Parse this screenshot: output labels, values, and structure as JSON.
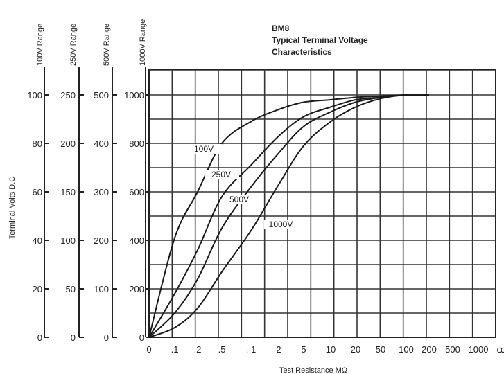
{
  "chart_data": {
    "type": "line",
    "title_lines": [
      "BM8",
      "Typical Terminal Voltage",
      "Characteristics"
    ],
    "xlabel": "Test Resistance MΩ",
    "ylabel": "Terminal Volts D.C",
    "x_ticks": [
      "0",
      ".1",
      ".2",
      ".5",
      ". 1",
      "2",
      "5",
      "10",
      "20",
      "50",
      "100",
      "200",
      "500",
      "1000",
      "∞"
    ],
    "y_axes": [
      {
        "range_label": "100V Range",
        "ticks": [
          "0",
          "20",
          "40",
          "60",
          "80",
          "100"
        ]
      },
      {
        "range_label": "250V Range",
        "ticks": [
          "0",
          "50",
          "100",
          "150",
          "200",
          "250"
        ]
      },
      {
        "range_label": "500V Range",
        "ticks": [
          "0",
          "100",
          "200",
          "300",
          "400",
          "500"
        ]
      },
      {
        "range_label": "1000V Range",
        "ticks": [
          "0",
          "200",
          "400",
          "600",
          "800",
          "1000"
        ]
      }
    ],
    "ylim_percent": [
      0,
      100
    ],
    "grid": true,
    "series": [
      {
        "name": "100V",
        "points": [
          [
            "0",
            0
          ],
          [
            ".1",
            41
          ],
          [
            ".2",
            60
          ],
          [
            ".5",
            80
          ],
          [
            ". 1",
            89
          ],
          [
            "2",
            94
          ],
          [
            "5",
            97
          ],
          [
            "10",
            98
          ],
          [
            "20",
            99
          ],
          [
            "50",
            99.5
          ],
          [
            "100",
            100
          ],
          [
            "200",
            100
          ]
        ]
      },
      {
        "name": "250V",
        "points": [
          [
            "0",
            0
          ],
          [
            ".1",
            18
          ],
          [
            ".2",
            36
          ],
          [
            ".5",
            58
          ],
          [
            ". 1",
            71
          ],
          [
            "2",
            83
          ],
          [
            "5",
            91
          ],
          [
            "10",
            95
          ],
          [
            "20",
            98
          ],
          [
            "50",
            99
          ],
          [
            "100",
            100
          ],
          [
            "200",
            100
          ]
        ]
      },
      {
        "name": "500V",
        "points": [
          [
            "0",
            0
          ],
          [
            ".1",
            10
          ],
          [
            ".2",
            24
          ],
          [
            ".5",
            45
          ],
          [
            ". 1",
            62
          ],
          [
            "2",
            76
          ],
          [
            "5",
            87
          ],
          [
            "10",
            93
          ],
          [
            "20",
            97
          ],
          [
            "50",
            99
          ],
          [
            "100",
            100
          ],
          [
            "200",
            100
          ]
        ]
      },
      {
        "name": "1000V",
        "points": [
          [
            "0",
            0
          ],
          [
            ".1",
            4
          ],
          [
            ".2",
            12
          ],
          [
            ".5",
            27
          ],
          [
            ". 1",
            44
          ],
          [
            "2",
            63
          ],
          [
            "5",
            79
          ],
          [
            "10",
            89
          ],
          [
            "20",
            95
          ],
          [
            "50",
            98.5
          ],
          [
            "100",
            100
          ],
          [
            "200",
            100
          ]
        ]
      }
    ]
  }
}
